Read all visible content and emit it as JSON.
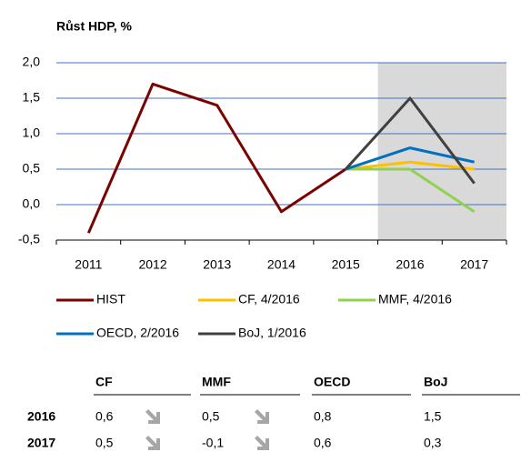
{
  "chart_data": {
    "type": "line",
    "title": "Růst HDP, %",
    "categories": [
      "2011",
      "2012",
      "2013",
      "2014",
      "2015",
      "2016",
      "2017"
    ],
    "series": [
      {
        "name": "HIST",
        "color": "#7b0000",
        "values": [
          -0.4,
          1.7,
          1.4,
          -0.1,
          0.5,
          null,
          null
        ]
      },
      {
        "name": "CF, 4/2016",
        "color": "#ffc000",
        "values": [
          null,
          null,
          null,
          null,
          0.5,
          0.6,
          0.5
        ]
      },
      {
        "name": "MMF, 4/2016",
        "color": "#92d050",
        "values": [
          null,
          null,
          null,
          null,
          0.5,
          0.5,
          -0.1
        ]
      },
      {
        "name": "OECD, 2/2016",
        "color": "#0070c0",
        "values": [
          null,
          null,
          null,
          null,
          0.5,
          0.8,
          0.6
        ]
      },
      {
        "name": "BoJ, 1/2016",
        "color": "#404040",
        "values": [
          null,
          null,
          null,
          null,
          0.5,
          1.5,
          0.3
        ]
      }
    ],
    "ylim": [
      -0.5,
      2.0
    ],
    "yticks": [
      {
        "value": -0.5,
        "label": "-0,5"
      },
      {
        "value": 0,
        "label": "0,0"
      },
      {
        "value": 0.5,
        "label": "0,5"
      },
      {
        "value": 1.0,
        "label": "1,0"
      },
      {
        "value": 1.5,
        "label": "1,5"
      },
      {
        "value": 2.0,
        "label": "2,0"
      }
    ],
    "grid": true,
    "grid_color": "#4472c4",
    "shaded": {
      "from": "2016",
      "to": "2017",
      "color": "#d9d9d9"
    }
  },
  "table": {
    "columns": [
      "CF",
      "MMF",
      "OECD",
      "BoJ"
    ],
    "rows": [
      {
        "label": "2016",
        "cells": [
          "0,6",
          "0,5",
          "0,8",
          "1,5"
        ]
      },
      {
        "label": "2017",
        "cells": [
          "0,5",
          "-0,1",
          "0,6",
          "0,3"
        ]
      }
    ]
  }
}
